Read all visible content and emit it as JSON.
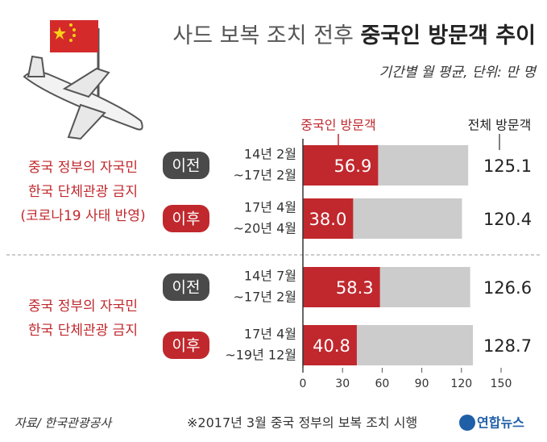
{
  "chart_data": {
    "type": "bar",
    "orientation": "horizontal",
    "title_parts": [
      "사드 보복 조치 전후",
      "중국인 방문객 추이"
    ],
    "subtitle": "기간별 월 평균, 단위: 만 명",
    "groups": [
      {
        "label": [
          "중국 정부의 자국민",
          "한국 단체관광 금지",
          "(코로나19 사태 반영)"
        ]
      },
      {
        "label": [
          "중국 정부의 자국민",
          "한국 단체관광 금지"
        ]
      }
    ],
    "phases": [
      "이전",
      "이후",
      "이전",
      "이후"
    ],
    "phase_colors": [
      "#4a4a4a",
      "#c0282d",
      "#4a4a4a",
      "#c0282d"
    ],
    "categories": [
      [
        "14년 2월",
        "~17년 2월"
      ],
      [
        "17년 4월",
        "~20년 4월"
      ],
      [
        "14년 7월",
        "~17년 2월"
      ],
      [
        "17년 4월",
        "~19년 12월"
      ]
    ],
    "series": [
      {
        "name": "중국인 방문객",
        "color": "#c0282d",
        "values": [
          56.9,
          38.0,
          58.3,
          40.8
        ],
        "value_labels": [
          "56.9",
          "38.0",
          "58.3",
          "40.8"
        ]
      },
      {
        "name": "전체 방문객",
        "color": "#cccccc",
        "values": [
          125.1,
          120.4,
          126.6,
          128.7
        ]
      }
    ],
    "xlim": [
      0,
      150
    ],
    "xticks": [
      0,
      30,
      60,
      90,
      120,
      150
    ],
    "source": "자료/ 한국관광공사",
    "note": "※2017년 3월 중국 정부의 보복 조치 시행",
    "logo": "연합뉴스"
  }
}
